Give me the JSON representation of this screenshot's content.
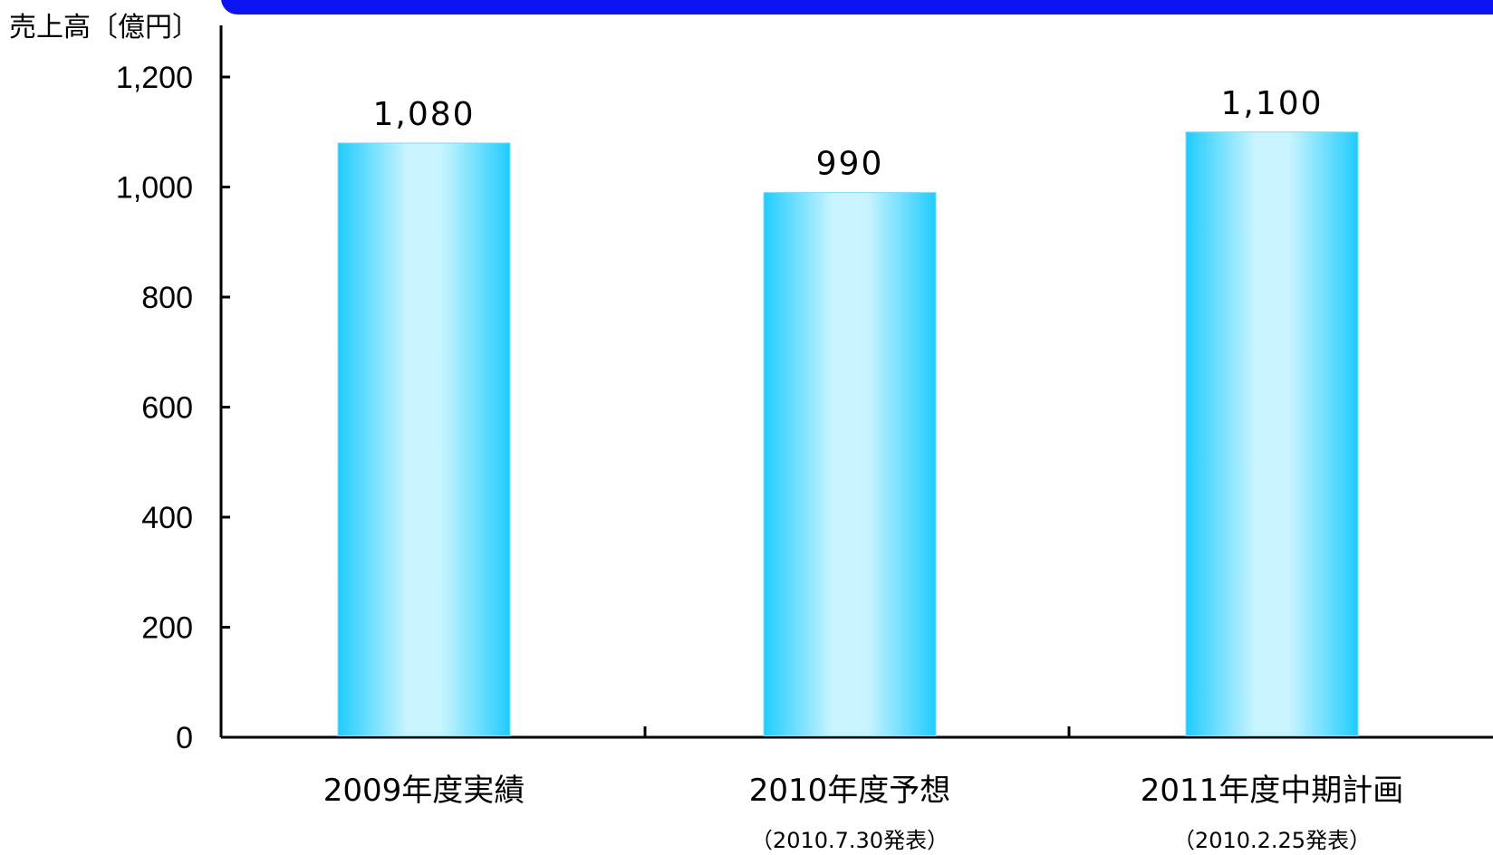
{
  "chart_data": {
    "type": "bar",
    "ylabel": "売上高〔億円〕",
    "categories": [
      "2009年度実績",
      "2010年度予想",
      "2011年度中期計画"
    ],
    "category_notes": [
      "",
      "（2010.7.30発表）",
      "（2010.2.25発表）"
    ],
    "values": [
      1080,
      990,
      1100
    ],
    "value_labels": [
      "1,080",
      "990",
      "1,100"
    ],
    "ylim": [
      0,
      1200
    ],
    "yticks": [
      0,
      200,
      400,
      600,
      800,
      1000,
      1200
    ],
    "ytick_labels": [
      "0",
      "200",
      "400",
      "600",
      "800",
      "1,000",
      "1,200"
    ],
    "grid": false,
    "bar_colors": {
      "edge": "#20ccff",
      "center": "#c8f4ff"
    }
  }
}
